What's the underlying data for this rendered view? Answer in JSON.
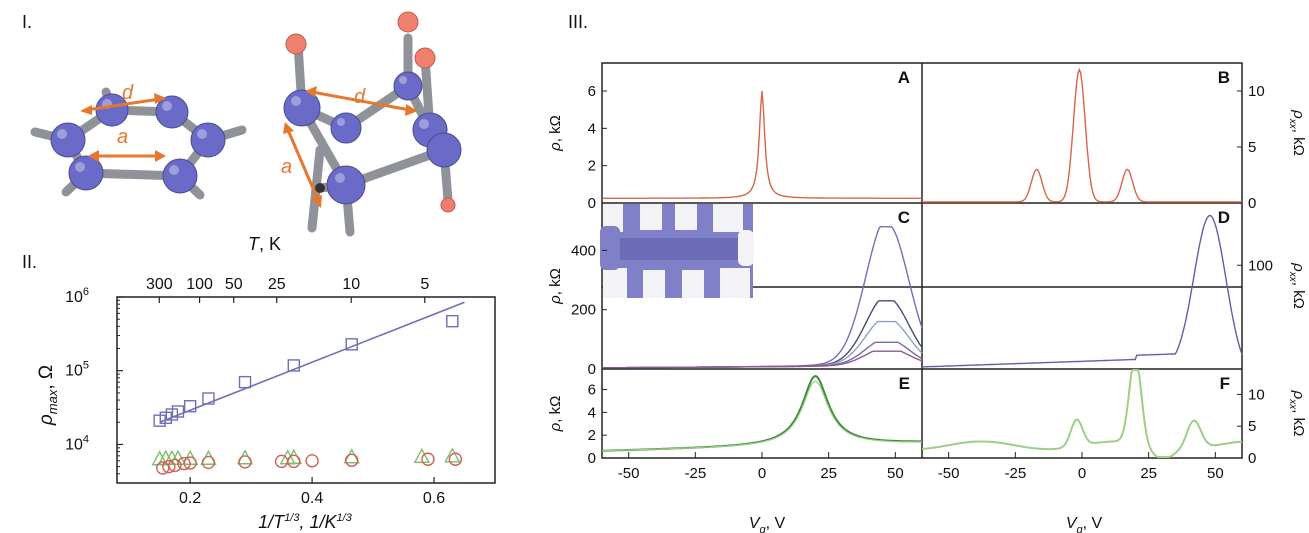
{
  "section_labels": {
    "one": "I.",
    "two": "II.",
    "three": "III."
  },
  "molecule": {
    "label_d": "d",
    "label_a": "a"
  },
  "colors": {
    "blue_series": "#6f6fb8",
    "green_series": "#7bbf6a",
    "red_series": "#d06058",
    "orange_arrow": "#e8772e",
    "atom": "#6a6ac8",
    "h_atom": "#ef8070",
    "curve_A": "#d8654a",
    "curve_B": "#d8654a",
    "curve_E": "#3f8a3a",
    "curve_F": "#9ccf88",
    "curve_D": "#6060a8"
  },
  "chart_data": [
    {
      "id": "II",
      "type": "scatter",
      "xlabel": "1/T^1/3, 1/K^1/3",
      "ylabel": "ρ_max, Ω",
      "top_axis_label": "T, K",
      "yscale": "log",
      "xlim": [
        0.08,
        0.7
      ],
      "ylim": [
        3000,
        1000000
      ],
      "x_ticks": [
        {
          "v": 0.2,
          "t": "0.2"
        },
        {
          "v": 0.4,
          "t": "0.4"
        },
        {
          "v": 0.6,
          "t": "0.6"
        }
      ],
      "y_ticks": [
        {
          "v": 10000,
          "b": "10",
          "e": "4"
        },
        {
          "v": 100000,
          "b": "10",
          "e": "5"
        },
        {
          "v": 1000000,
          "b": "10",
          "e": "6"
        }
      ],
      "top_ticks": [
        {
          "T": 300,
          "t": "300"
        },
        {
          "T": 100,
          "t": "100"
        },
        {
          "T": 50,
          "t": "50"
        },
        {
          "T": 25,
          "t": "25"
        },
        {
          "T": 10,
          "t": "10"
        },
        {
          "T": 5,
          "t": "5"
        }
      ],
      "series": [
        {
          "marker": "square",
          "color": "#6f6fb8",
          "points": [
            [
              0.15,
              21000
            ],
            [
              0.16,
              23000
            ],
            [
              0.17,
              25500
            ],
            [
              0.18,
              28000
            ],
            [
              0.2,
              33000
            ],
            [
              0.23,
              42000
            ],
            [
              0.29,
              70000
            ],
            [
              0.37,
              118000
            ],
            [
              0.465,
              228000
            ],
            [
              0.63,
              470000
            ]
          ]
        },
        {
          "marker": "triangle",
          "color": "#7bbf6a",
          "points": [
            [
              0.15,
              6200
            ],
            [
              0.16,
              6300
            ],
            [
              0.17,
              6300
            ],
            [
              0.18,
              6300
            ],
            [
              0.2,
              6300
            ],
            [
              0.23,
              6300
            ],
            [
              0.29,
              6400
            ],
            [
              0.36,
              6400
            ],
            [
              0.37,
              6500
            ],
            [
              0.465,
              6600
            ],
            [
              0.58,
              6700
            ],
            [
              0.63,
              6800
            ]
          ]
        },
        {
          "marker": "circle",
          "color": "#d06058",
          "points": [
            [
              0.155,
              4800
            ],
            [
              0.165,
              5000
            ],
            [
              0.175,
              5200
            ],
            [
              0.19,
              5500
            ],
            [
              0.2,
              5600
            ],
            [
              0.23,
              5700
            ],
            [
              0.29,
              5800
            ],
            [
              0.35,
              5900
            ],
            [
              0.37,
              5900
            ],
            [
              0.4,
              6000
            ],
            [
              0.465,
              6100
            ],
            [
              0.59,
              6300
            ],
            [
              0.635,
              6300
            ]
          ]
        }
      ],
      "fit_line": [
        [
          0.15,
          20000
        ],
        [
          0.65,
          850000
        ]
      ]
    },
    {
      "id": "III",
      "type": "line",
      "xlabel": "V_g, V",
      "x_ticks": [
        -50,
        -25,
        0,
        25,
        50
      ],
      "xlim": [
        -60,
        60
      ],
      "panels": [
        {
          "letter": "A",
          "ylabel": "ρ, kΩ",
          "yticks": [
            0,
            2,
            4,
            6
          ],
          "ylim": [
            0,
            7.5
          ],
          "curve": "lorentz",
          "center": 0,
          "peak": 6,
          "width": 1.2,
          "base": 0.25
        },
        {
          "letter": "B",
          "ylabel": "ρ_xx, kΩ",
          "yticks": [
            0,
            5,
            10
          ],
          "ylim": [
            0,
            12.5
          ],
          "curve": "gauss3",
          "peaks": [
            {
              "c": -1,
              "h": 11.8,
              "w": 2.2
            },
            {
              "c": -17,
              "h": 2.9,
              "w": 2
            },
            {
              "c": 17,
              "h": 2.9,
              "w": 2
            }
          ],
          "base": 0.1
        },
        {
          "letter": "C",
          "ylabel": "ρ, kΩ",
          "yticks": [
            0,
            200,
            400
          ],
          "ylim": [
            0,
            560
          ],
          "curve": "family",
          "center": 47,
          "peaks": [
            480,
            230,
            160,
            90,
            60
          ]
        },
        {
          "letter": "D",
          "ylabel": "ρ_xx, kΩ",
          "yticks": [
            100
          ],
          "ylim": [
            0,
            160
          ],
          "curve": "peak_rise",
          "center": 48,
          "peak": 148
        },
        {
          "letter": "E",
          "ylabel": "ρ, kΩ",
          "yticks": [
            0,
            2,
            4,
            6
          ],
          "ylim": [
            0,
            7.8
          ],
          "curve": "lorentz2",
          "center": 20,
          "peak": 7.1,
          "width": 6
        },
        {
          "letter": "F",
          "ylabel": "ρ_xx, kΩ",
          "yticks": [
            0,
            5,
            10
          ],
          "ylim": [
            0,
            14
          ],
          "curve": "gauss3",
          "peaks": [
            {
              "c": 20,
              "h": 13.8,
              "w": 2.2
            },
            {
              "c": -2,
              "h": 4.2,
              "w": 2.2
            },
            {
              "c": 42,
              "h": 4.4,
              "w": 2.6
            }
          ],
          "base": 2.0
        }
      ]
    }
  ]
}
